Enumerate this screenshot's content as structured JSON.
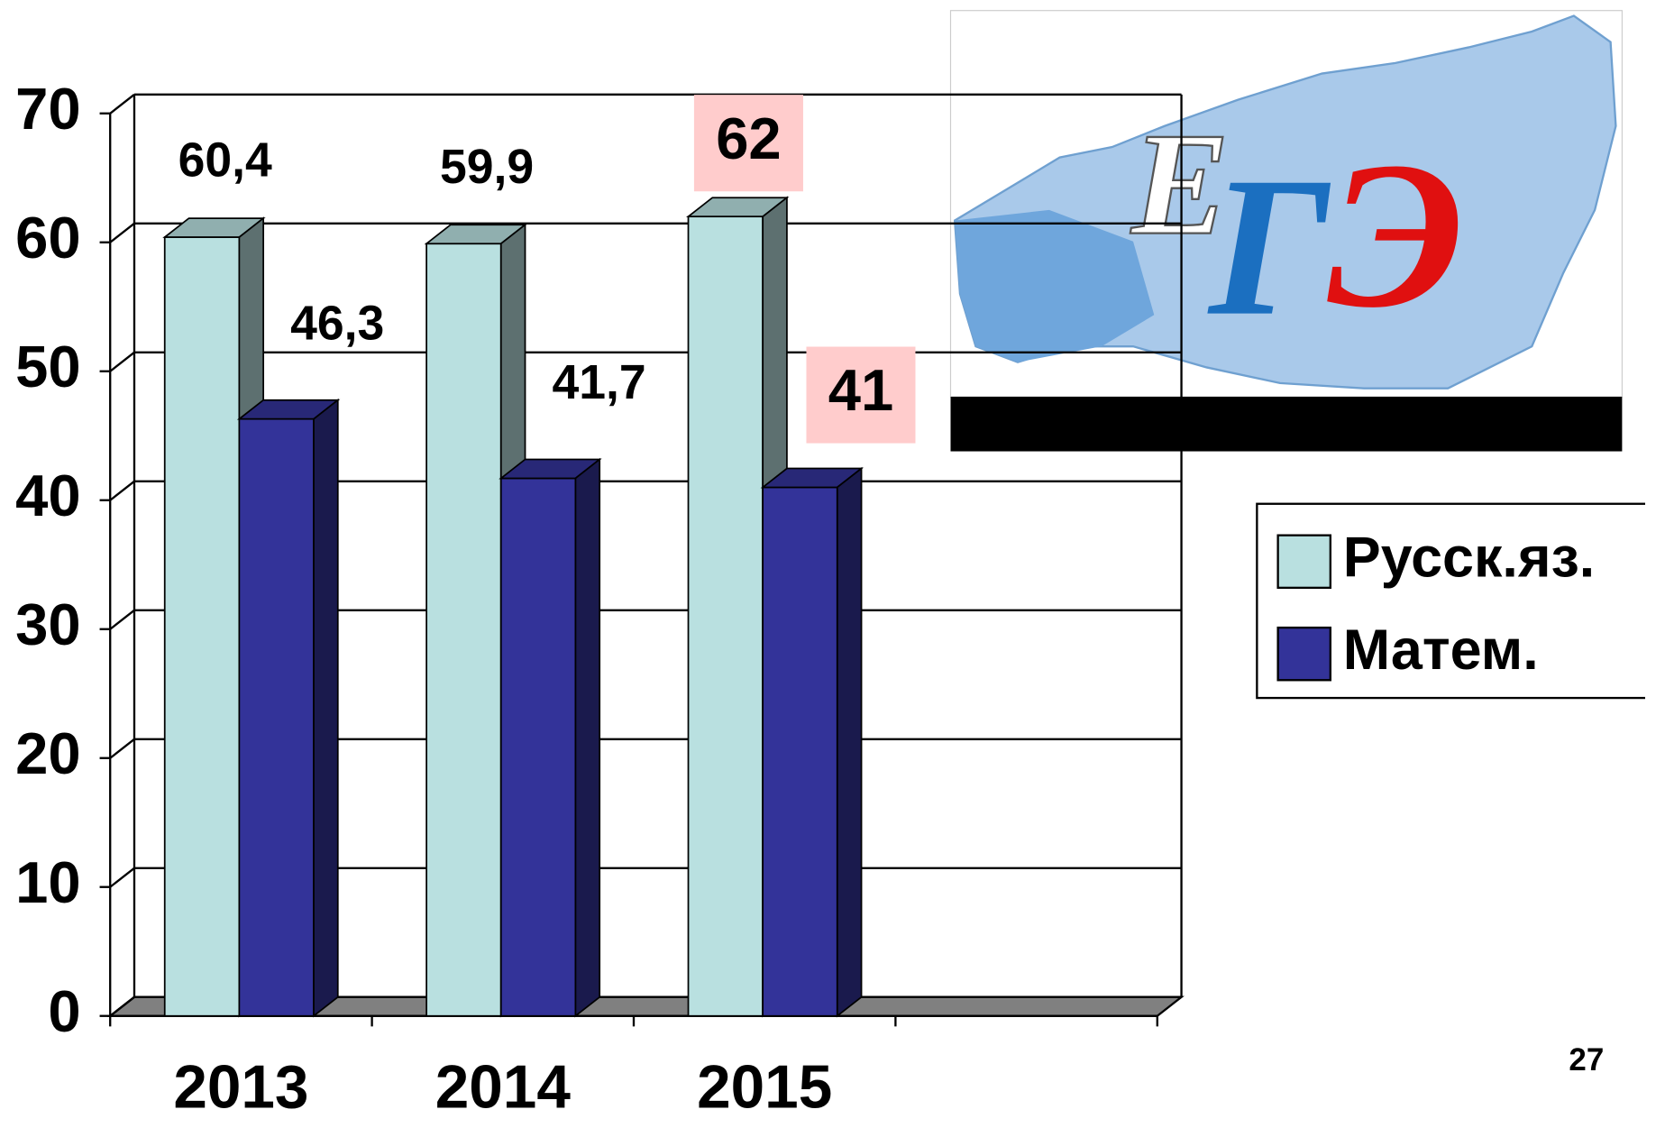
{
  "chart_data": {
    "type": "bar3d",
    "categories": [
      "2013",
      "2014",
      "2015",
      null
    ],
    "series": [
      {
        "name": "Русск.яз.",
        "color": "#b9e0e0",
        "values": [
          60.4,
          59.9,
          62,
          null
        ],
        "value_labels": [
          "60,4",
          "59,9",
          "62",
          null
        ],
        "label_backgrounds": [
          null,
          null,
          "#ffcccc",
          null
        ]
      },
      {
        "name": "Матем.",
        "color": "#333399",
        "values": [
          46.3,
          41.7,
          41,
          null
        ],
        "value_labels": [
          "46,3",
          "41,7",
          "41",
          null
        ],
        "label_backgrounds": [
          null,
          null,
          "#ffcccc",
          null
        ]
      }
    ],
    "ylim": [
      0,
      70
    ],
    "yticks": [
      0,
      10,
      20,
      30,
      40,
      50,
      60,
      70
    ],
    "grid": true,
    "legend": "right"
  },
  "logo": {
    "letters": [
      "Е",
      "Г",
      "Э"
    ]
  },
  "page_number": "27"
}
